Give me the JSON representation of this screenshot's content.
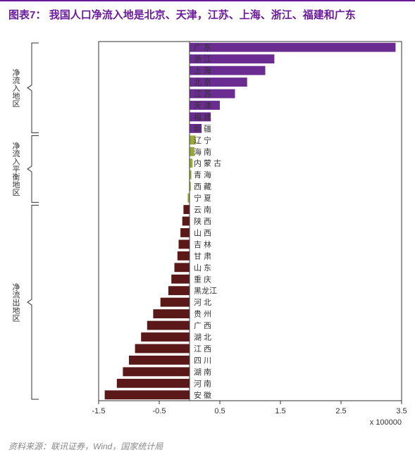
{
  "title_prefix": "图表7：",
  "title_text": "我国人口净流入地是北京、天津，江苏、上海、浙江、福建和广东",
  "footer": "资料来源：联讯证券，Wind，国家统计局",
  "chart": {
    "type": "bar-horizontal",
    "xlim": [
      -1.5,
      3.5
    ],
    "xticks": [
      -1.5,
      -0.5,
      0.5,
      1.5,
      2.5,
      3.5
    ],
    "x_multiplier_label": "x 100000",
    "background": "#ffffff",
    "axis_color": "#333333",
    "grid_color": "#cccccc",
    "label_fontsize": 11,
    "bar_height_ratio": 0.78,
    "groups": [
      {
        "label": "净流入地区",
        "color": "#6a2c91",
        "items": [
          {
            "cat": "广 东",
            "val": 3.4
          },
          {
            "cat": "浙 江",
            "val": 1.4
          },
          {
            "cat": "上 海",
            "val": 1.25
          },
          {
            "cat": "北 京",
            "val": 0.95
          },
          {
            "cat": "江 苏",
            "val": 0.75
          },
          {
            "cat": "天 津",
            "val": 0.5
          },
          {
            "cat": "福 建",
            "val": 0.35
          },
          {
            "cat": "新 疆",
            "val": 0.2
          }
        ]
      },
      {
        "label": "净流入平衡地区",
        "color": "#9aa83a",
        "items": [
          {
            "cat": "辽 宁",
            "val": 0.1
          },
          {
            "cat": "海 南",
            "val": 0.08
          },
          {
            "cat": "内 蒙 古",
            "val": 0.05
          },
          {
            "cat": "青 海",
            "val": 0.03
          },
          {
            "cat": "西 藏",
            "val": 0.02
          },
          {
            "cat": "宁 夏",
            "val": -0.03
          }
        ]
      },
      {
        "label": "净流出地区",
        "color": "#5a1818",
        "items": [
          {
            "cat": "云 南",
            "val": -0.1
          },
          {
            "cat": "陕 西",
            "val": -0.12
          },
          {
            "cat": "山 西",
            "val": -0.15
          },
          {
            "cat": "吉 林",
            "val": -0.18
          },
          {
            "cat": "甘 肃",
            "val": -0.2
          },
          {
            "cat": "山 东",
            "val": -0.25
          },
          {
            "cat": "重 庆",
            "val": -0.3
          },
          {
            "cat": "黑龙江",
            "val": -0.35
          },
          {
            "cat": "河 北",
            "val": -0.48
          },
          {
            "cat": "贵 州",
            "val": -0.6
          },
          {
            "cat": "广 西",
            "val": -0.7
          },
          {
            "cat": "湖 北",
            "val": -0.8
          },
          {
            "cat": "江 西",
            "val": -0.9
          },
          {
            "cat": "四 川",
            "val": -1.0
          },
          {
            "cat": "湖 南",
            "val": -1.1
          },
          {
            "cat": "河 南",
            "val": -1.2
          },
          {
            "cat": "安 徽",
            "val": -1.4
          }
        ]
      }
    ]
  }
}
